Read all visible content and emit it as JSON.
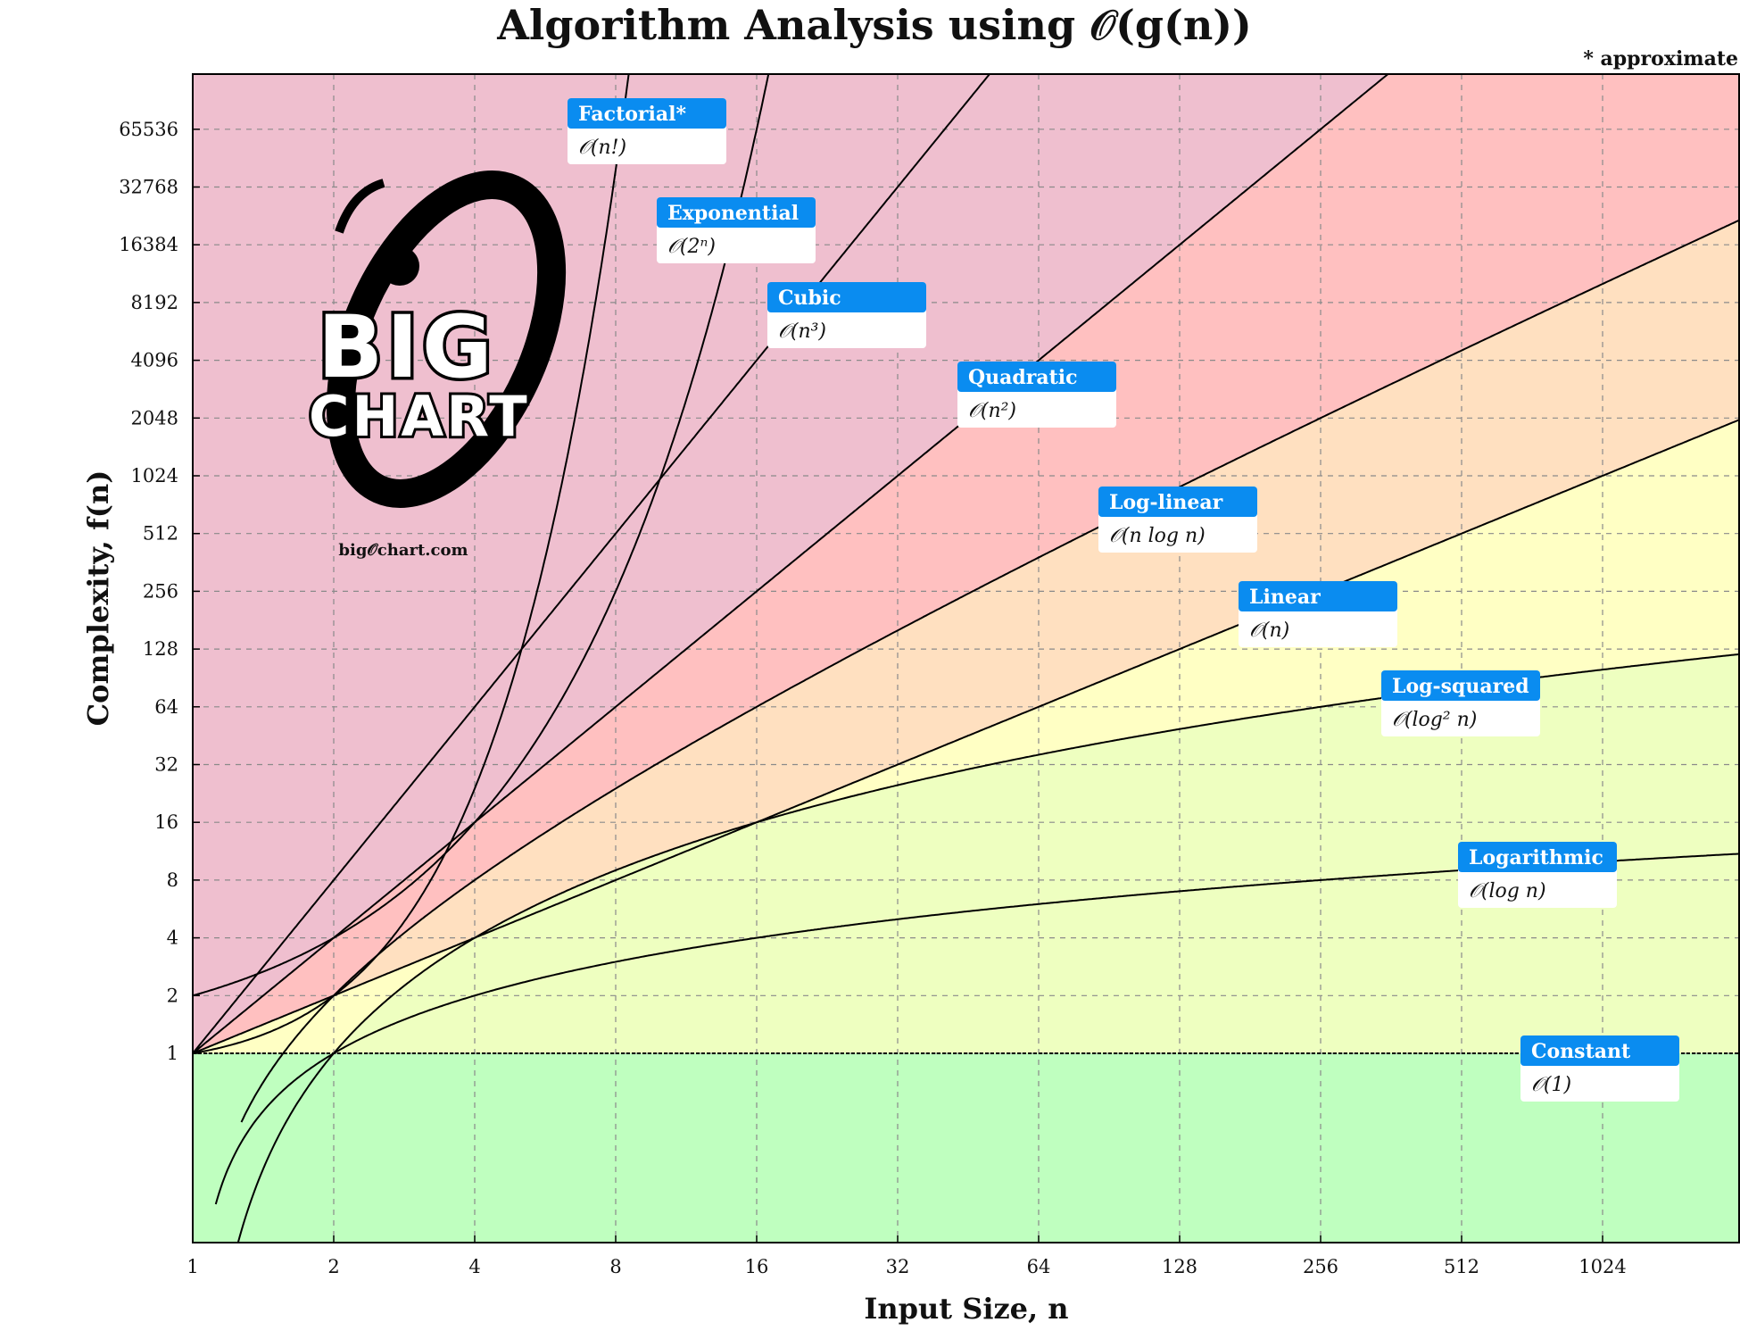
{
  "chart_data": {
    "type": "line",
    "title": "Algorithm Analysis using 𝒪(g(n))",
    "note": "* approximate",
    "xlabel": "Input Size, n",
    "ylabel": "Complexity, f(n)",
    "x_scale": "log2",
    "y_scale": "log2",
    "xlim": [
      1,
      2048
    ],
    "ylim": [
      0.035,
      131072
    ],
    "x_ticks": [
      "1",
      "2",
      "4",
      "8",
      "16",
      "32",
      "64",
      "128",
      "256",
      "512",
      "1024"
    ],
    "x_tick_values": [
      1,
      2,
      4,
      8,
      16,
      32,
      64,
      128,
      256,
      512,
      1024
    ],
    "y_ticks": [
      "1",
      "2",
      "4",
      "8",
      "16",
      "32",
      "64",
      "128",
      "256",
      "512",
      "1024",
      "2048",
      "4096",
      "8192",
      "16384",
      "32768",
      "65536"
    ],
    "y_tick_values": [
      1,
      2,
      4,
      8,
      16,
      32,
      64,
      128,
      256,
      512,
      1024,
      2048,
      4096,
      8192,
      16384,
      32768,
      65536
    ],
    "grid": true,
    "series": [
      {
        "name": "Constant",
        "formula": "𝒪(1)",
        "fn": "constant",
        "color": "#bfffbf"
      },
      {
        "name": "Logarithmic",
        "formula": "𝒪(log n)",
        "fn": "log",
        "color": "#eeffc0"
      },
      {
        "name": "Log-squared",
        "formula": "𝒪(log² n)",
        "fn": "log2",
        "color": "#ffffc4"
      },
      {
        "name": "Linear",
        "formula": "𝒪(n)",
        "fn": "linear",
        "color": "#ffe0c0"
      },
      {
        "name": "Log-linear",
        "formula": "𝒪(n log n)",
        "fn": "nlogn",
        "color": "#ffc0c0"
      },
      {
        "name": "Quadratic",
        "formula": "𝒪(n²)",
        "fn": "quadratic",
        "color": "#efbfcf"
      },
      {
        "name": "Cubic",
        "formula": "𝒪(n³)",
        "fn": "cubic",
        "color": "#efbfcf"
      },
      {
        "name": "Exponential",
        "formula": "𝒪(2ⁿ)",
        "fn": "exponential",
        "color": "#efbfcf"
      },
      {
        "name": "Factorial*",
        "formula": "𝒪(n!)",
        "fn": "factorial",
        "color": "#efbfcf"
      }
    ]
  },
  "logo": {
    "line1": "BIG",
    "line2": "CHART",
    "site": "big𝒪chart.com"
  }
}
